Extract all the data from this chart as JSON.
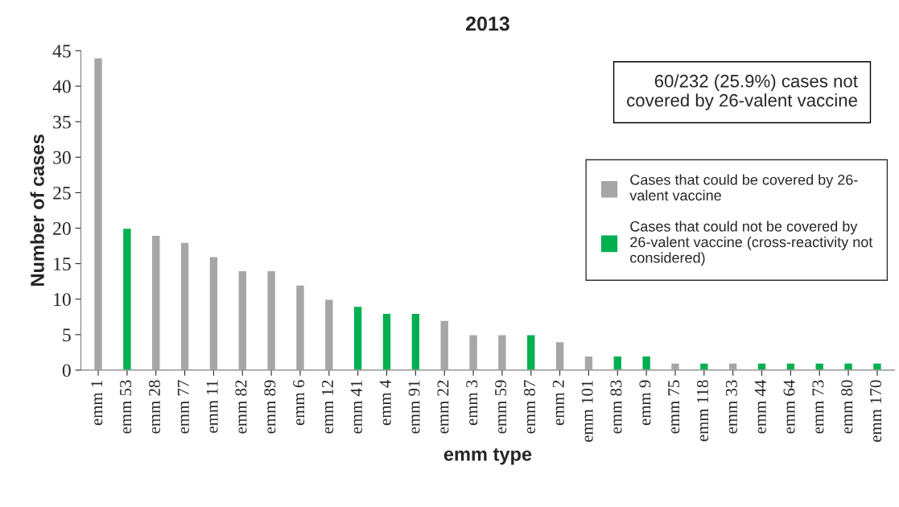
{
  "chart_data": {
    "type": "bar",
    "title": "2013",
    "xlabel": "emm type",
    "ylabel": "Number of cases",
    "categories": [
      "emm 1",
      "emm 53",
      "emm 28",
      "emm 77",
      "emm 11",
      "emm 82",
      "emm 89",
      "emm 6",
      "emm 12",
      "emm 41",
      "emm 4",
      "emm 91",
      "emm 22",
      "emm 3",
      "emm 59",
      "emm 87",
      "emm 2",
      "emm 101",
      "emm 83",
      "emm 9",
      "emm 75",
      "emm 118",
      "emm 33",
      "emm 44",
      "emm 64",
      "emm 73",
      "emm 80",
      "emm 170"
    ],
    "series": [
      {
        "name": "Cases that could be covered by 26-\nvalent vaccine",
        "color": "#a6a6a6",
        "values": [
          44,
          null,
          19,
          18,
          16,
          14,
          14,
          12,
          10,
          null,
          null,
          null,
          7,
          5,
          5,
          null,
          4,
          2,
          null,
          null,
          1,
          null,
          1,
          null,
          null,
          null,
          null,
          null
        ]
      },
      {
        "name": "Cases that could not be covered by\n26-valent vaccine (cross-reactivity not\nconsidered)",
        "color": "#00b050",
        "values": [
          null,
          20,
          null,
          null,
          null,
          null,
          null,
          null,
          null,
          9,
          8,
          8,
          null,
          null,
          null,
          5,
          null,
          null,
          2,
          2,
          null,
          1,
          null,
          1,
          1,
          1,
          1,
          1
        ]
      }
    ],
    "ylim": [
      0,
      45
    ],
    "yticks": [
      0,
      5,
      10,
      15,
      20,
      25,
      30,
      35,
      40,
      45
    ],
    "grid": false,
    "legend": "right",
    "annotations": [
      "60/232 (25.9%) cases not\ncovered by 26-valent vaccine"
    ]
  }
}
